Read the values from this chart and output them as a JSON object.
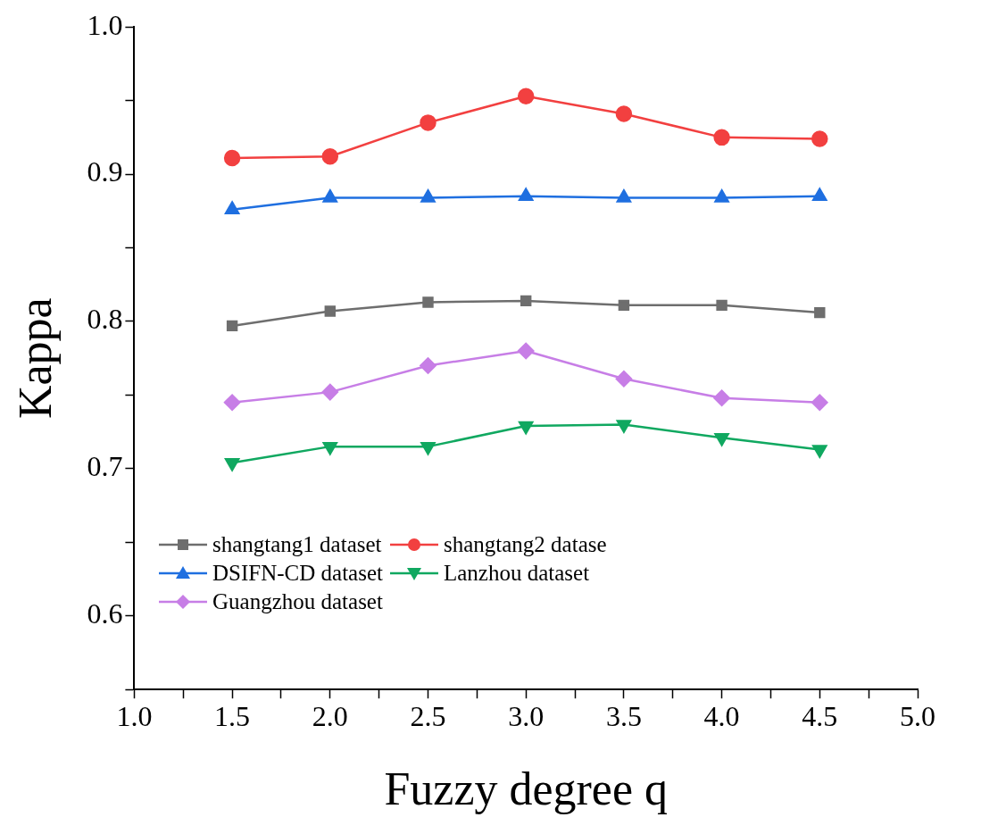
{
  "chart_data": {
    "type": "line",
    "xlabel": "Fuzzy degree q",
    "ylabel": "Kappa",
    "x": [
      1.5,
      2.0,
      2.5,
      3.0,
      3.5,
      4.0,
      4.5
    ],
    "xlim": [
      1,
      5
    ],
    "ylim": [
      0.55,
      1
    ],
    "xticks": [
      {
        "value": 1,
        "label": "1.0"
      },
      {
        "value": 1.25,
        "label": null
      },
      {
        "value": 1.5,
        "label": "1.5"
      },
      {
        "value": 1.75,
        "label": null
      },
      {
        "value": 2,
        "label": "2.0"
      },
      {
        "value": 2.25,
        "label": null
      },
      {
        "value": 2.5,
        "label": "2.5"
      },
      {
        "value": 2.75,
        "label": null
      },
      {
        "value": 3,
        "label": "3.0"
      },
      {
        "value": 3.25,
        "label": null
      },
      {
        "value": 3.5,
        "label": "3.5"
      },
      {
        "value": 3.75,
        "label": null
      },
      {
        "value": 4,
        "label": "4.0"
      },
      {
        "value": 4.25,
        "label": null
      },
      {
        "value": 4.5,
        "label": "4.5"
      },
      {
        "value": 4.75,
        "label": null
      },
      {
        "value": 5,
        "label": "5.0"
      }
    ],
    "yticks": [
      {
        "value": 0.55,
        "label": null
      },
      0.6,
      {
        "value": 0.65,
        "label": null
      },
      0.7,
      {
        "value": 0.75,
        "label": null
      },
      0.8,
      {
        "value": 0.85,
        "label": null
      },
      0.9,
      {
        "value": 0.95,
        "label": null
      },
      {
        "value": 1,
        "label": "1.0"
      }
    ],
    "grid": false,
    "legend": "bottom left",
    "line_style": "solid",
    "series": [
      {
        "name": "shangtang1 dataset",
        "color": "#6e6e6e",
        "marker": "square",
        "values": [
          0.797,
          0.807,
          0.813,
          0.814,
          0.811,
          0.811,
          0.806
        ]
      },
      {
        "name": "shangtang2 datase",
        "color": "#f24040",
        "marker": "circle",
        "values": [
          0.911,
          0.912,
          0.935,
          0.953,
          0.941,
          0.925,
          0.924
        ]
      },
      {
        "name": "DSIFN-CD dataset",
        "color": "#1f6fe0",
        "marker": "triangle",
        "values": [
          0.876,
          0.884,
          0.884,
          0.885,
          0.884,
          0.884,
          0.885
        ]
      },
      {
        "name": "Lanzhou dataset",
        "color": "#10a860",
        "marker": "triangle-down",
        "values": [
          0.704,
          0.715,
          0.715,
          0.729,
          0.73,
          0.721,
          0.713
        ]
      },
      {
        "name": "Guangzhou dataset",
        "color": "#c77ee6",
        "marker": "diamond",
        "values": [
          0.745,
          0.752,
          0.77,
          0.78,
          0.761,
          0.748,
          0.745
        ]
      }
    ]
  }
}
